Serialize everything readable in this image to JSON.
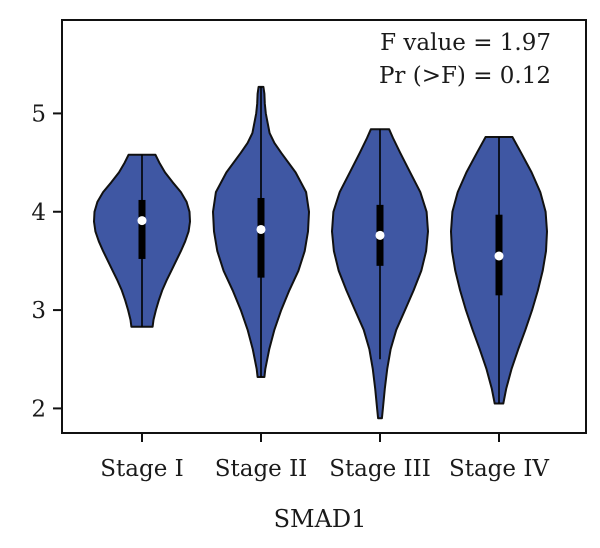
{
  "chart_data": {
    "type": "violin",
    "title": "",
    "xlabel": "SMAD1",
    "ylabel": "",
    "categories": [
      "Stage I",
      "Stage II",
      "Stage III",
      "Stage IV"
    ],
    "ylim": [
      1.75,
      5.95
    ],
    "yticks": [
      2,
      3,
      4,
      5
    ],
    "grid": false,
    "colors": {
      "violin_fill": "#3f57a3",
      "outline": "#111111",
      "median_dot": "#ffffff"
    },
    "annotations": [
      "F value = 1.97",
      "Pr (>F) = 0.12"
    ],
    "groups": [
      {
        "name": "Stage I",
        "min": 2.83,
        "max": 4.58,
        "q1": 3.52,
        "median": 3.91,
        "q3": 4.12,
        "whisker_low": 2.83,
        "whisker_high": 4.58,
        "profile": [
          [
            2.83,
            0.22
          ],
          [
            2.9,
            0.24
          ],
          [
            3.0,
            0.29
          ],
          [
            3.1,
            0.35
          ],
          [
            3.2,
            0.42
          ],
          [
            3.3,
            0.51
          ],
          [
            3.4,
            0.61
          ],
          [
            3.5,
            0.71
          ],
          [
            3.6,
            0.81
          ],
          [
            3.7,
            0.9
          ],
          [
            3.8,
            0.97
          ],
          [
            3.9,
            1.0
          ],
          [
            4.0,
            0.99
          ],
          [
            4.1,
            0.93
          ],
          [
            4.2,
            0.81
          ],
          [
            4.3,
            0.64
          ],
          [
            4.4,
            0.48
          ],
          [
            4.5,
            0.36
          ],
          [
            4.58,
            0.28
          ]
        ]
      },
      {
        "name": "Stage II",
        "min": 2.32,
        "max": 5.27,
        "q1": 3.33,
        "median": 3.82,
        "q3": 4.14,
        "whisker_low": 2.32,
        "whisker_high": 5.27,
        "profile": [
          [
            2.32,
            0.07
          ],
          [
            2.4,
            0.09
          ],
          [
            2.6,
            0.17
          ],
          [
            2.8,
            0.28
          ],
          [
            3.0,
            0.42
          ],
          [
            3.2,
            0.59
          ],
          [
            3.4,
            0.78
          ],
          [
            3.6,
            0.91
          ],
          [
            3.8,
            0.98
          ],
          [
            4.0,
            1.0
          ],
          [
            4.2,
            0.94
          ],
          [
            4.4,
            0.72
          ],
          [
            4.6,
            0.42
          ],
          [
            4.7,
            0.28
          ],
          [
            4.8,
            0.18
          ],
          [
            5.0,
            0.1
          ],
          [
            5.1,
            0.08
          ],
          [
            5.2,
            0.07
          ],
          [
            5.27,
            0.05
          ]
        ]
      },
      {
        "name": "Stage III",
        "min": 1.9,
        "max": 4.84,
        "q1": 3.45,
        "median": 3.76,
        "q3": 4.07,
        "whisker_low": 2.5,
        "whisker_high": 4.84,
        "profile": [
          [
            1.9,
            0.04
          ],
          [
            2.0,
            0.06
          ],
          [
            2.2,
            0.1
          ],
          [
            2.4,
            0.15
          ],
          [
            2.6,
            0.22
          ],
          [
            2.8,
            0.34
          ],
          [
            3.0,
            0.52
          ],
          [
            3.2,
            0.7
          ],
          [
            3.4,
            0.86
          ],
          [
            3.6,
            0.96
          ],
          [
            3.8,
            1.0
          ],
          [
            4.0,
            0.97
          ],
          [
            4.2,
            0.84
          ],
          [
            4.4,
            0.63
          ],
          [
            4.6,
            0.42
          ],
          [
            4.75,
            0.27
          ],
          [
            4.84,
            0.19
          ]
        ]
      },
      {
        "name": "Stage IV",
        "min": 2.05,
        "max": 4.76,
        "q1": 3.15,
        "median": 3.55,
        "q3": 3.97,
        "whisker_low": 2.05,
        "whisker_high": 4.76,
        "profile": [
          [
            2.05,
            0.09
          ],
          [
            2.2,
            0.15
          ],
          [
            2.4,
            0.26
          ],
          [
            2.6,
            0.4
          ],
          [
            2.8,
            0.55
          ],
          [
            3.0,
            0.69
          ],
          [
            3.2,
            0.81
          ],
          [
            3.4,
            0.91
          ],
          [
            3.6,
            0.98
          ],
          [
            3.8,
            1.0
          ],
          [
            4.0,
            0.97
          ],
          [
            4.2,
            0.86
          ],
          [
            4.4,
            0.68
          ],
          [
            4.6,
            0.46
          ],
          [
            4.76,
            0.28
          ]
        ]
      }
    ]
  }
}
